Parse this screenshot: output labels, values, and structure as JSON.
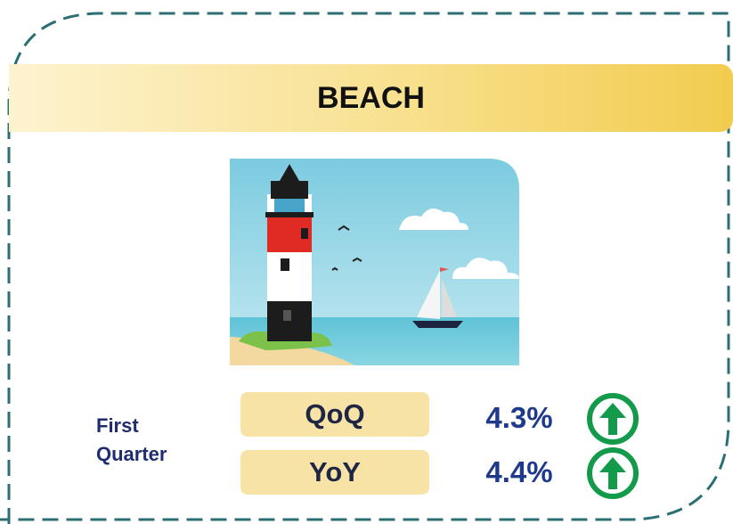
{
  "header": {
    "title": "BEACH"
  },
  "period": "First Quarter",
  "metrics": [
    {
      "label": "QoQ",
      "value": "4.3%"
    },
    {
      "label": "YoY",
      "value": "4.4%"
    }
  ]
}
